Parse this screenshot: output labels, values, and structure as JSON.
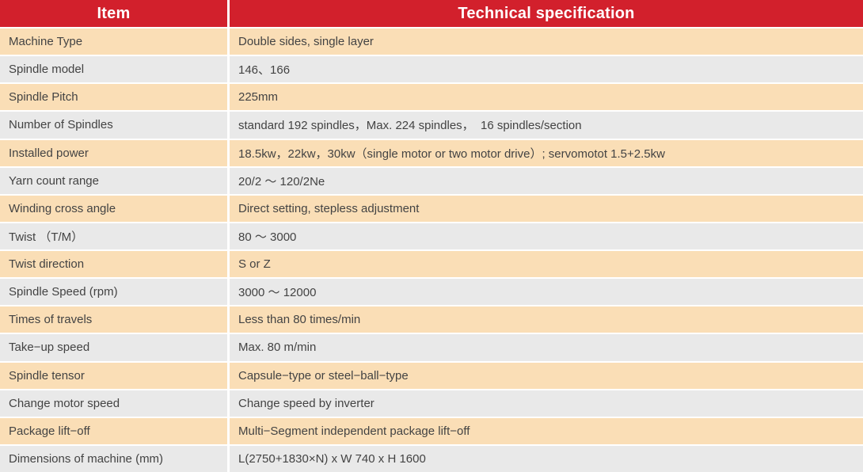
{
  "colors": {
    "header_bg": "#d2202c",
    "header_text": "#ffffff",
    "row_odd_bg": "#fadeb6",
    "row_even_bg": "#e9e9e9",
    "divider": "#ffffff",
    "text": "#434343"
  },
  "table": {
    "columns": {
      "item_label": "Item",
      "spec_label": "Technical specification"
    },
    "rows": [
      {
        "item": "Machine Type",
        "spec": "Double sides, single layer"
      },
      {
        "item": "Spindle model",
        "spec": "146、166"
      },
      {
        "item": "Spindle Pitch",
        "spec": "225mm"
      },
      {
        "item": "Number of Spindles",
        "spec": "standard 192 spindles，Max. 224 spindles，  16 spindles/section"
      },
      {
        "item": "Installed power",
        "spec": "18.5kw，22kw，30kw（single motor or two motor drive）; servomotot 1.5+2.5kw"
      },
      {
        "item": "Yarn count range",
        "spec": "20/2 ～ 120/2Ne"
      },
      {
        "item": "Winding cross angle",
        "spec": "Direct setting, stepless adjustment"
      },
      {
        "item": "Twist （T/M）",
        "spec": "80 ～ 3000"
      },
      {
        "item": "Twist direction",
        "spec": "S or Z"
      },
      {
        "item": "Spindle Speed (rpm)",
        "spec": "3000 ～ 12000"
      },
      {
        "item": "Times of travels",
        "spec": "Less than 80 times/min"
      },
      {
        "item": "Take−up speed",
        "spec": "Max. 80 m/min"
      },
      {
        "item": "Spindle tensor",
        "spec": "Capsule−type or steel−ball−type"
      },
      {
        "item": "Change motor speed",
        "spec": "Change speed by inverter"
      },
      {
        "item": "Package lift−off",
        "spec": "Multi−Segment independent package lift−off"
      },
      {
        "item": "Dimensions of machine (mm)",
        "spec": "L(2750+1830×N) x W 740 x H 1600"
      }
    ]
  }
}
